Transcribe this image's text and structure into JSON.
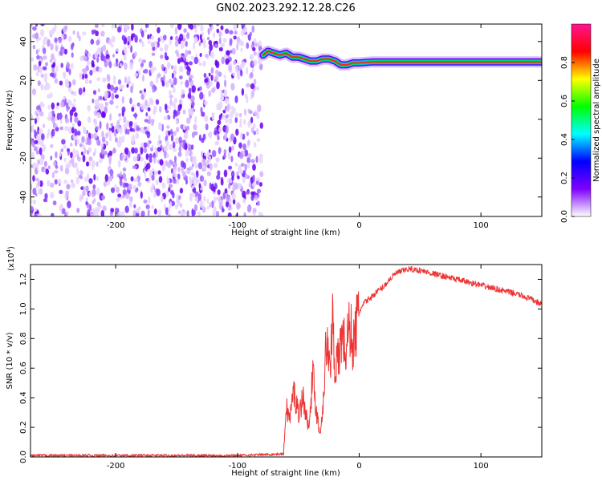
{
  "chart_data": [
    {
      "type": "heatmap",
      "title": "GN02.2023.292.12.28.C26",
      "xlabel": "Height of straight line (km)",
      "ylabel": "Frequency (Hz)",
      "xlim": [
        -270,
        150
      ],
      "ylim": [
        -50,
        49
      ],
      "xticks": [
        -200,
        -100,
        0,
        100
      ],
      "xtick_labels": [
        "-200",
        "-100",
        "0",
        "100"
      ],
      "yticks": [
        40,
        20,
        0,
        -20,
        -40
      ],
      "ytick_labels": [
        "40",
        "20",
        "0",
        "-20",
        "-40"
      ],
      "noise_region_x": [
        -270,
        -80
      ],
      "ridge": {
        "x": [
          -79,
          -75,
          -70,
          -65,
          -60,
          -55,
          -50,
          -45,
          -40,
          -35,
          -30,
          -25,
          -20,
          -15,
          -10,
          -5,
          0,
          10,
          20,
          40,
          60,
          80,
          100,
          120,
          150
        ],
        "y": [
          33,
          35,
          34,
          33,
          34,
          32,
          32,
          31,
          30,
          30,
          31,
          31,
          30,
          28,
          28,
          29,
          29,
          29.5,
          29.5,
          29.5,
          29.5,
          29.5,
          29.5,
          29.5,
          29.5
        ]
      },
      "colorbar": {
        "label": "Normalized spectral amplitude",
        "ticks": [
          0.0,
          0.2,
          0.4,
          0.6,
          0.8
        ],
        "tick_labels": [
          "0.0",
          "0.2",
          "0.4",
          "0.6",
          "0.8"
        ],
        "colors": [
          "#ffffff",
          "#7f00ff",
          "#0000ff",
          "#00ffff",
          "#00ff00",
          "#ffff00",
          "#ff0000",
          "#ff1493"
        ]
      }
    },
    {
      "type": "line",
      "title": "",
      "xlabel": "Height of straight line (km)",
      "ylabel": "SNR (10 * v/v)",
      "scale_label": "(x10",
      "scale_exponent": "4",
      "scale_close": ")",
      "xlim": [
        -270,
        150
      ],
      "ylim": [
        0,
        1.3
      ],
      "xticks": [
        -200,
        -100,
        0,
        100
      ],
      "xtick_labels": [
        "-200",
        "-100",
        "0",
        "100"
      ],
      "yticks": [
        0.0,
        0.2,
        0.4,
        0.6,
        0.8,
        1.0,
        1.2
      ],
      "ytick_labels": [
        "0.0",
        "0.2",
        "0.4",
        "0.6",
        "0.8",
        "1.0",
        "1.2"
      ],
      "series": [
        {
          "color": "#ee3333",
          "x": [
            -270,
            -200,
            -150,
            -100,
            -62,
            -60,
            -57,
            -54,
            -50,
            -46,
            -42,
            -38,
            -35,
            -32,
            -29,
            -27,
            -24,
            -22,
            -20,
            -17,
            -14,
            -11,
            -8,
            -5,
            -2,
            0,
            5,
            10,
            15,
            20,
            25,
            30,
            40,
            50,
            60,
            70,
            80,
            90,
            100,
            110,
            120,
            130,
            140,
            150
          ],
          "y": [
            0.01,
            0.01,
            0.01,
            0.01,
            0.02,
            0.35,
            0.25,
            0.45,
            0.3,
            0.4,
            0.2,
            0.55,
            0.3,
            0.15,
            0.45,
            0.8,
            0.55,
            1.0,
            0.6,
            0.65,
            0.85,
            0.7,
            0.9,
            0.75,
            0.9,
            0.98,
            1.05,
            1.08,
            1.12,
            1.15,
            1.2,
            1.24,
            1.27,
            1.26,
            1.24,
            1.22,
            1.2,
            1.18,
            1.16,
            1.14,
            1.12,
            1.1,
            1.07,
            1.03
          ]
        }
      ]
    }
  ]
}
